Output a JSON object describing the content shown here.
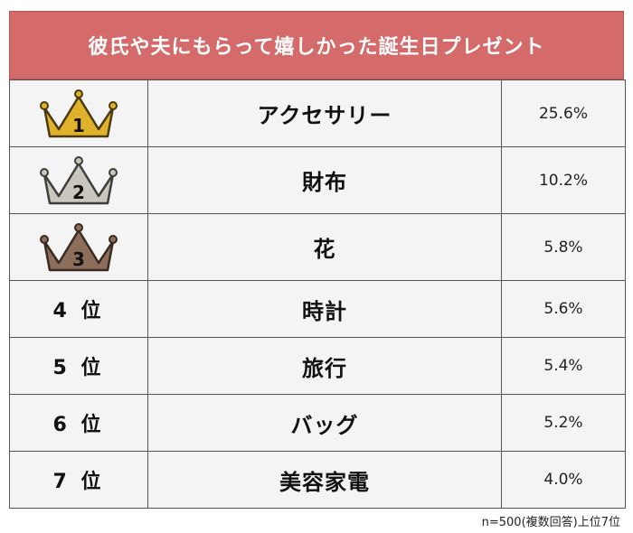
{
  "title": "彼氏や夫にもらって嬉しかった誕生日プレゼント",
  "rows": [
    {
      "rank": "1",
      "item": "アクセサリー",
      "percent": "25.6%",
      "crown": "gold-crown-icon",
      "crown_color": "#e0b12a"
    },
    {
      "rank": "2",
      "item": "財布",
      "percent": "10.2%",
      "crown": "silver-crown-icon",
      "crown_color": "#c9c6bd"
    },
    {
      "rank": "3",
      "item": "花",
      "percent": "5.8%",
      "crown": "bronze-crown-icon",
      "crown_color": "#8c6e5a"
    },
    {
      "rank": "4 位",
      "item": "時計",
      "percent": "5.6%"
    },
    {
      "rank": "5 位",
      "item": "旅行",
      "percent": "5.4%"
    },
    {
      "rank": "6 位",
      "item": "バッグ",
      "percent": "5.2%"
    },
    {
      "rank": "7 位",
      "item": "美容家電",
      "percent": "4.0%"
    }
  ],
  "footnote": "n=500(複数回答)上位7位",
  "colors": {
    "header_bg": "#d46a6a",
    "cell_bg": "#f4f4f4"
  }
}
